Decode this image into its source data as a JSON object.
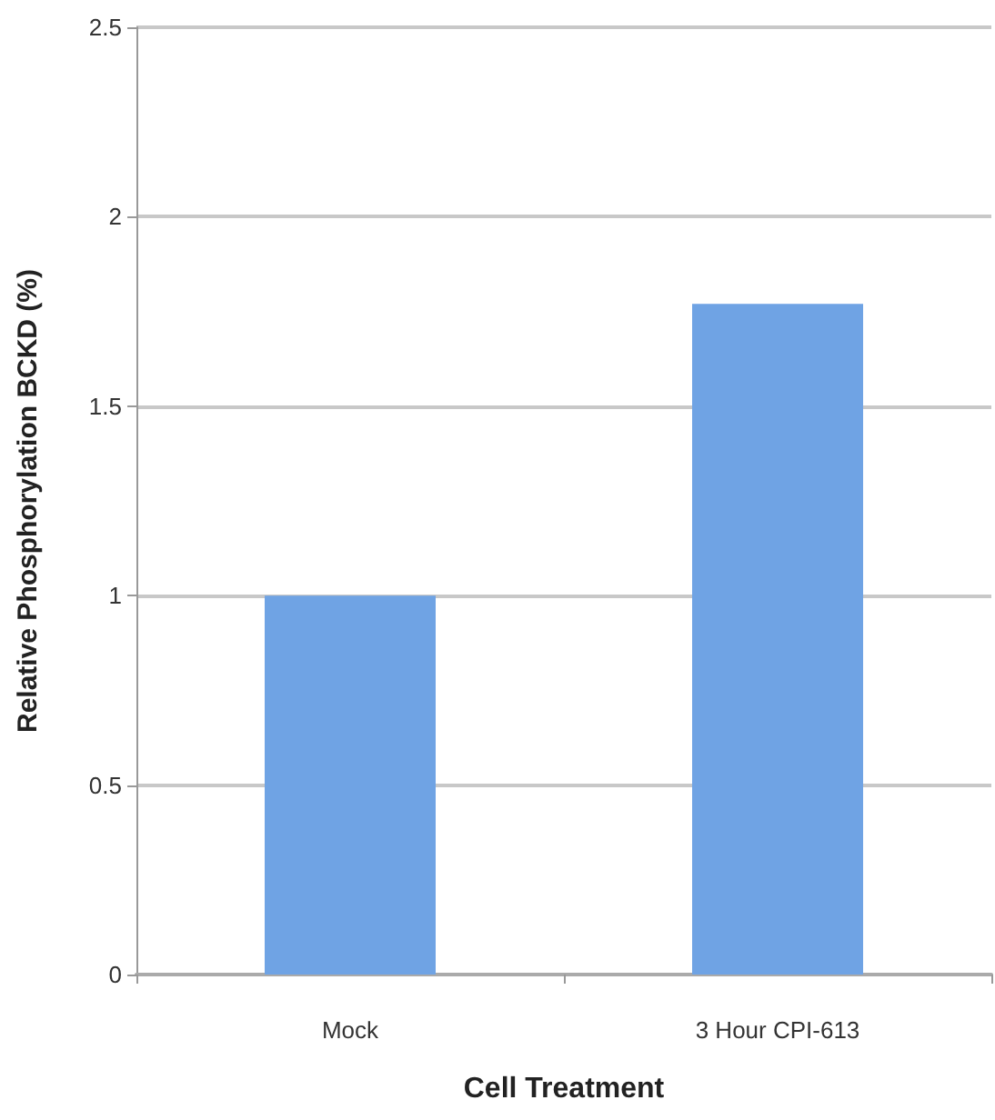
{
  "chart_data": {
    "type": "bar",
    "xlabel": "Cell Treatment",
    "ylabel": "Relative Phosphorylation BCKD (%)",
    "categories": [
      "Mock",
      "3 Hour CPI-613"
    ],
    "values": [
      1.0,
      1.77
    ],
    "color": "#6fa3e4",
    "ylim": [
      0,
      2.5
    ],
    "yticks": [
      0,
      0.5,
      1,
      1.5,
      2,
      2.5
    ],
    "grid": "y"
  }
}
